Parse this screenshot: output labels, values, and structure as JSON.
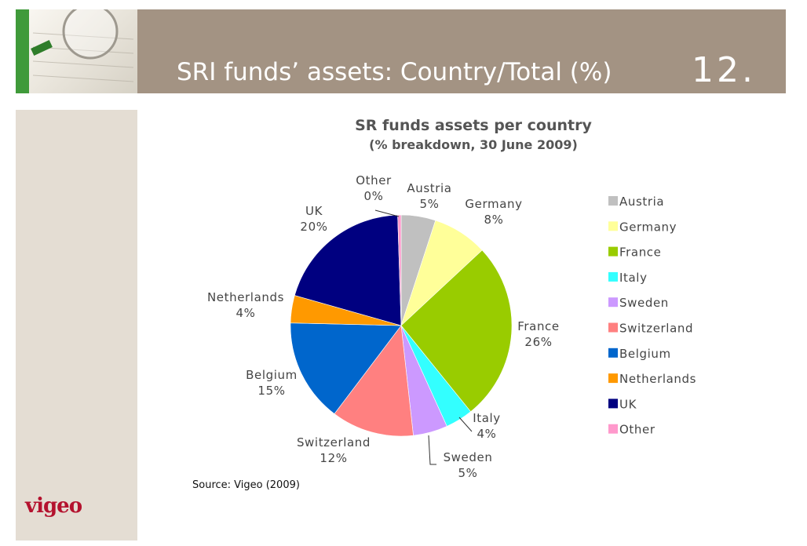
{
  "header": {
    "title": "SRI funds’ assets: Country/Total (%)",
    "slide_number": "12."
  },
  "brand": {
    "logo_text": "vigeo"
  },
  "source_note": "Source: Vigeo (2009)",
  "colors": {
    "header_band": "#a39383",
    "left_panel": "#e4ddd3",
    "accent_green": "#3f9a3a",
    "logo_red": "#b4122e"
  },
  "chart_data": {
    "type": "pie",
    "title": "SR funds assets per country",
    "subtitle": "(% breakdown, 30 June 2009)",
    "legend_position": "right",
    "slices": [
      {
        "name": "Austria",
        "value": 5,
        "label": "5%",
        "color": "#c0c0c0"
      },
      {
        "name": "Germany",
        "value": 8,
        "label": "8%",
        "color": "#ffff99"
      },
      {
        "name": "France",
        "value": 26,
        "label": "26%",
        "color": "#99cc00"
      },
      {
        "name": "Italy",
        "value": 4,
        "label": "4%",
        "color": "#33ffff"
      },
      {
        "name": "Sweden",
        "value": 5,
        "label": "5%",
        "color": "#cc99ff"
      },
      {
        "name": "Switzerland",
        "value": 12,
        "label": "12%",
        "color": "#ff8080"
      },
      {
        "name": "Belgium",
        "value": 15,
        "label": "15%",
        "color": "#0066cc"
      },
      {
        "name": "Netherlands",
        "value": 4,
        "label": "4%",
        "color": "#ff9900"
      },
      {
        "name": "UK",
        "value": 20,
        "label": "20%",
        "color": "#000080"
      },
      {
        "name": "Other",
        "value": 0.5,
        "label": "0%",
        "color": "#ff99cc"
      }
    ]
  }
}
